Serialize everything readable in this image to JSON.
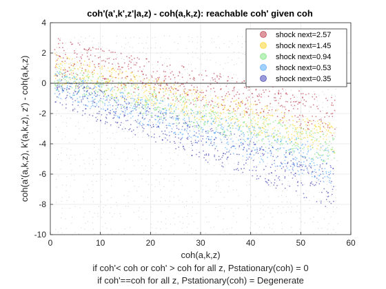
{
  "chart_data": {
    "type": "scatter",
    "title": "coh'(a',k',z'|a,z) - coh(a,k,z): reachable coh' given coh",
    "xlabel": "coh(a,k,z)",
    "ylabel": "coh(a'(a,k,z), k'(a,k,z), z') - coh(a,k,z)",
    "xlabel_notes": [
      "if coh'< coh or coh' > coh for all z, Pstationary(coh) = 0",
      "if coh'==coh for all z, Pstationary(coh) = Degenerate"
    ],
    "xlim": [
      0,
      60
    ],
    "ylim": [
      -10,
      4
    ],
    "xticks": [
      0,
      10,
      20,
      30,
      40,
      50,
      60
    ],
    "yticks": [
      -10,
      -8,
      -6,
      -4,
      -2,
      0,
      2,
      4
    ],
    "legend_position": "top-right",
    "grid": true,
    "zero_line": 0,
    "x_range_of_points": [
      1,
      57
    ],
    "series": [
      {
        "name": "shock next=2.57",
        "color": "#b2182b",
        "upper": [
          [
            1.2,
            3.0
          ],
          [
            10,
            2.3
          ],
          [
            30,
            0.9
          ],
          [
            57,
            -1.0
          ]
        ],
        "lower": [
          [
            1.2,
            0.5
          ],
          [
            57,
            -3.5
          ]
        ]
      },
      {
        "name": "shock next=1.45",
        "color": "#ffcc00",
        "upper": [
          [
            1.2,
            2.0
          ],
          [
            57,
            -2.7
          ]
        ],
        "lower": [
          [
            1.2,
            0.0
          ],
          [
            57,
            -4.7
          ]
        ]
      },
      {
        "name": "shock next=0.94",
        "color": "#66dd66",
        "upper": [
          [
            1.2,
            1.3
          ],
          [
            57,
            -3.5
          ]
        ],
        "lower": [
          [
            1.2,
            -0.5
          ],
          [
            57,
            -5.5
          ]
        ]
      },
      {
        "name": "shock next=0.53",
        "color": "#3399ff",
        "upper": [
          [
            1.2,
            0.8
          ],
          [
            57,
            -4.3
          ]
        ],
        "lower": [
          [
            1.2,
            -1.0
          ],
          [
            57,
            -6.8
          ]
        ]
      },
      {
        "name": "shock next=0.35",
        "color": "#2222aa",
        "upper": [
          [
            1.2,
            0.5
          ],
          [
            57,
            -5.5
          ]
        ],
        "lower": [
          [
            1.2,
            -1.5
          ],
          [
            57,
            -8.4
          ]
        ]
      }
    ],
    "background_points": {
      "color": "#999999",
      "x_range": [
        1,
        57
      ],
      "y_range": [
        -10,
        3
      ]
    }
  }
}
